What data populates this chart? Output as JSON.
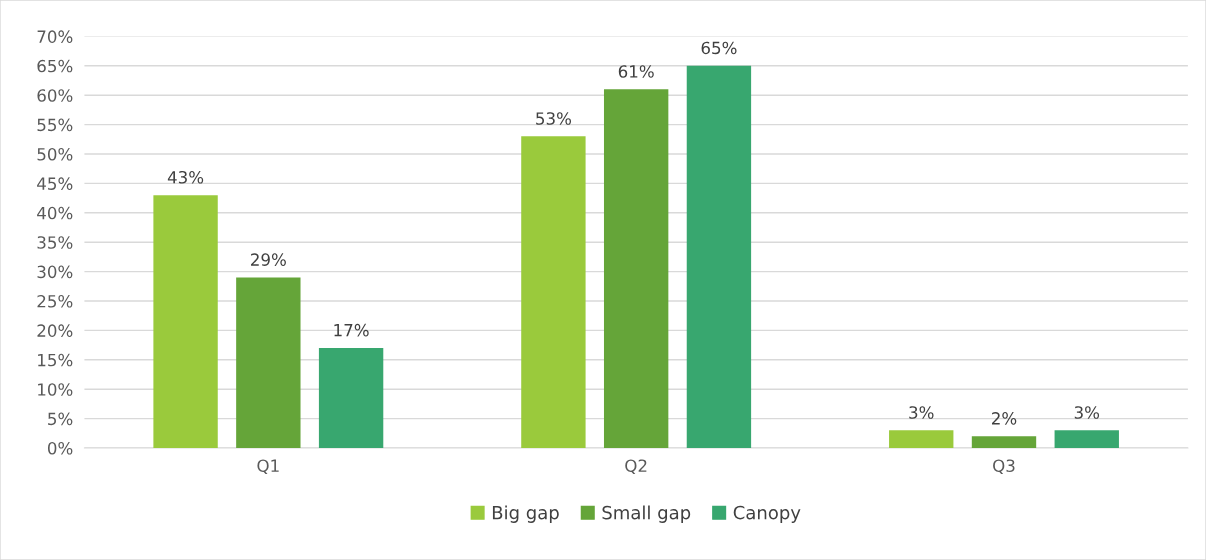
{
  "chart_data": {
    "type": "bar",
    "categories": [
      "Q1",
      "Q2",
      "Q3"
    ],
    "series": [
      {
        "name": "Big gap",
        "color": "#9aca3c",
        "values": [
          43,
          53,
          3
        ],
        "value_labels": [
          "43%",
          "53%",
          "3%"
        ]
      },
      {
        "name": "Small gap",
        "color": "#65a539",
        "values": [
          29,
          61,
          2
        ],
        "value_labels": [
          "29%",
          "61%",
          "2%"
        ]
      },
      {
        "name": "Canopy",
        "color": "#38a76f",
        "values": [
          17,
          65,
          3
        ],
        "value_labels": [
          "17%",
          "65%",
          "3%"
        ]
      }
    ],
    "ylim": [
      0,
      70
    ],
    "yticks": [
      {
        "value": 0,
        "label": "0%"
      },
      {
        "value": 5,
        "label": "5%"
      },
      {
        "value": 10,
        "label": "10%"
      },
      {
        "value": 15,
        "label": "15%"
      },
      {
        "value": 20,
        "label": "20%"
      },
      {
        "value": 25,
        "label": "25%"
      },
      {
        "value": 30,
        "label": "30%"
      },
      {
        "value": 35,
        "label": "35%"
      },
      {
        "value": 40,
        "label": "40%"
      },
      {
        "value": 45,
        "label": "45%"
      },
      {
        "value": 50,
        "label": "50%"
      },
      {
        "value": 55,
        "label": "55%"
      },
      {
        "value": 60,
        "label": "60%"
      },
      {
        "value": 65,
        "label": "65%"
      },
      {
        "value": 70,
        "label": "70%"
      }
    ],
    "grid": "y",
    "legend": "bottom"
  }
}
